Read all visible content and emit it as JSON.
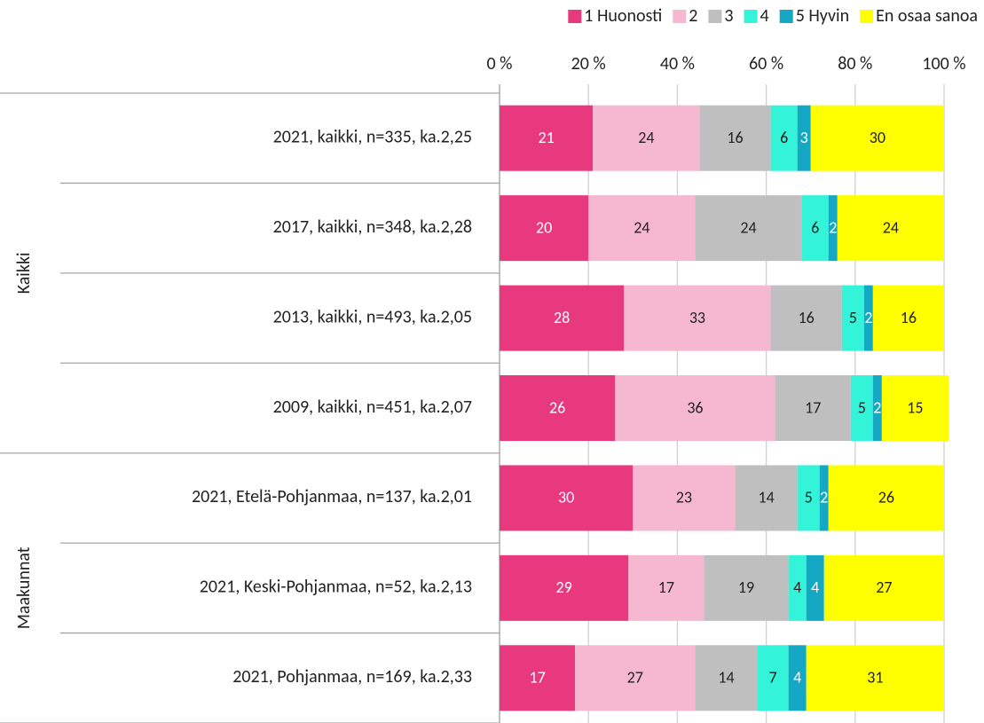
{
  "chart_data": {
    "type": "stacked-bar-horizontal",
    "categories": [
      "2021, kaikki, n=335, ka.2,25",
      "2017, kaikki, n=348, ka.2,28",
      "2013, kaikki, n=493, ka.2,05",
      "2009, kaikki, n=451, ka.2,07",
      "2021, Etelä-Pohjanmaa, n=137, ka.2,01",
      "2021, Keski-Pohjanmaa, n=52, ka.2,13",
      "2021, Pohjanmaa, n=169, ka.2,33"
    ],
    "groups": [
      {
        "label": "Kaikki",
        "rows": [
          0,
          3
        ]
      },
      {
        "label": "Maakunnat",
        "rows": [
          4,
          6
        ]
      }
    ],
    "series": [
      {
        "name": "1 Huonosti",
        "color": "#e8397f",
        "label_color": "#ffffff",
        "values": [
          21,
          20,
          28,
          26,
          30,
          29,
          17
        ]
      },
      {
        "name": "2",
        "color": "#f6b8d0",
        "label_color": "#222222",
        "values": [
          24,
          24,
          33,
          36,
          23,
          17,
          27
        ]
      },
      {
        "name": "3",
        "color": "#bfbfbf",
        "label_color": "#222222",
        "values": [
          16,
          24,
          16,
          17,
          14,
          19,
          14
        ]
      },
      {
        "name": "4",
        "color": "#33f3d8",
        "label_color": "#222222",
        "values": [
          6,
          6,
          5,
          5,
          5,
          4,
          7
        ]
      },
      {
        "name": "5 Hyvin",
        "color": "#14a8c4",
        "label_color": "#ffffff",
        "values": [
          3,
          2,
          2,
          2,
          2,
          4,
          4
        ]
      },
      {
        "name": "En osaa sanoa",
        "color": "#ffff00",
        "label_color": "#222222",
        "values": [
          30,
          24,
          16,
          15,
          26,
          27,
          31
        ]
      }
    ],
    "xlim": [
      0,
      100
    ],
    "xticks": [
      {
        "value": 0,
        "label": "0 %"
      },
      {
        "value": 20,
        "label": "20 %"
      },
      {
        "value": 40,
        "label": "40 %"
      },
      {
        "value": 60,
        "label": "60 %"
      },
      {
        "value": 80,
        "label": "80 %"
      },
      {
        "value": 100,
        "label": "100 %"
      }
    ],
    "grid": true,
    "legend": "top-right"
  }
}
